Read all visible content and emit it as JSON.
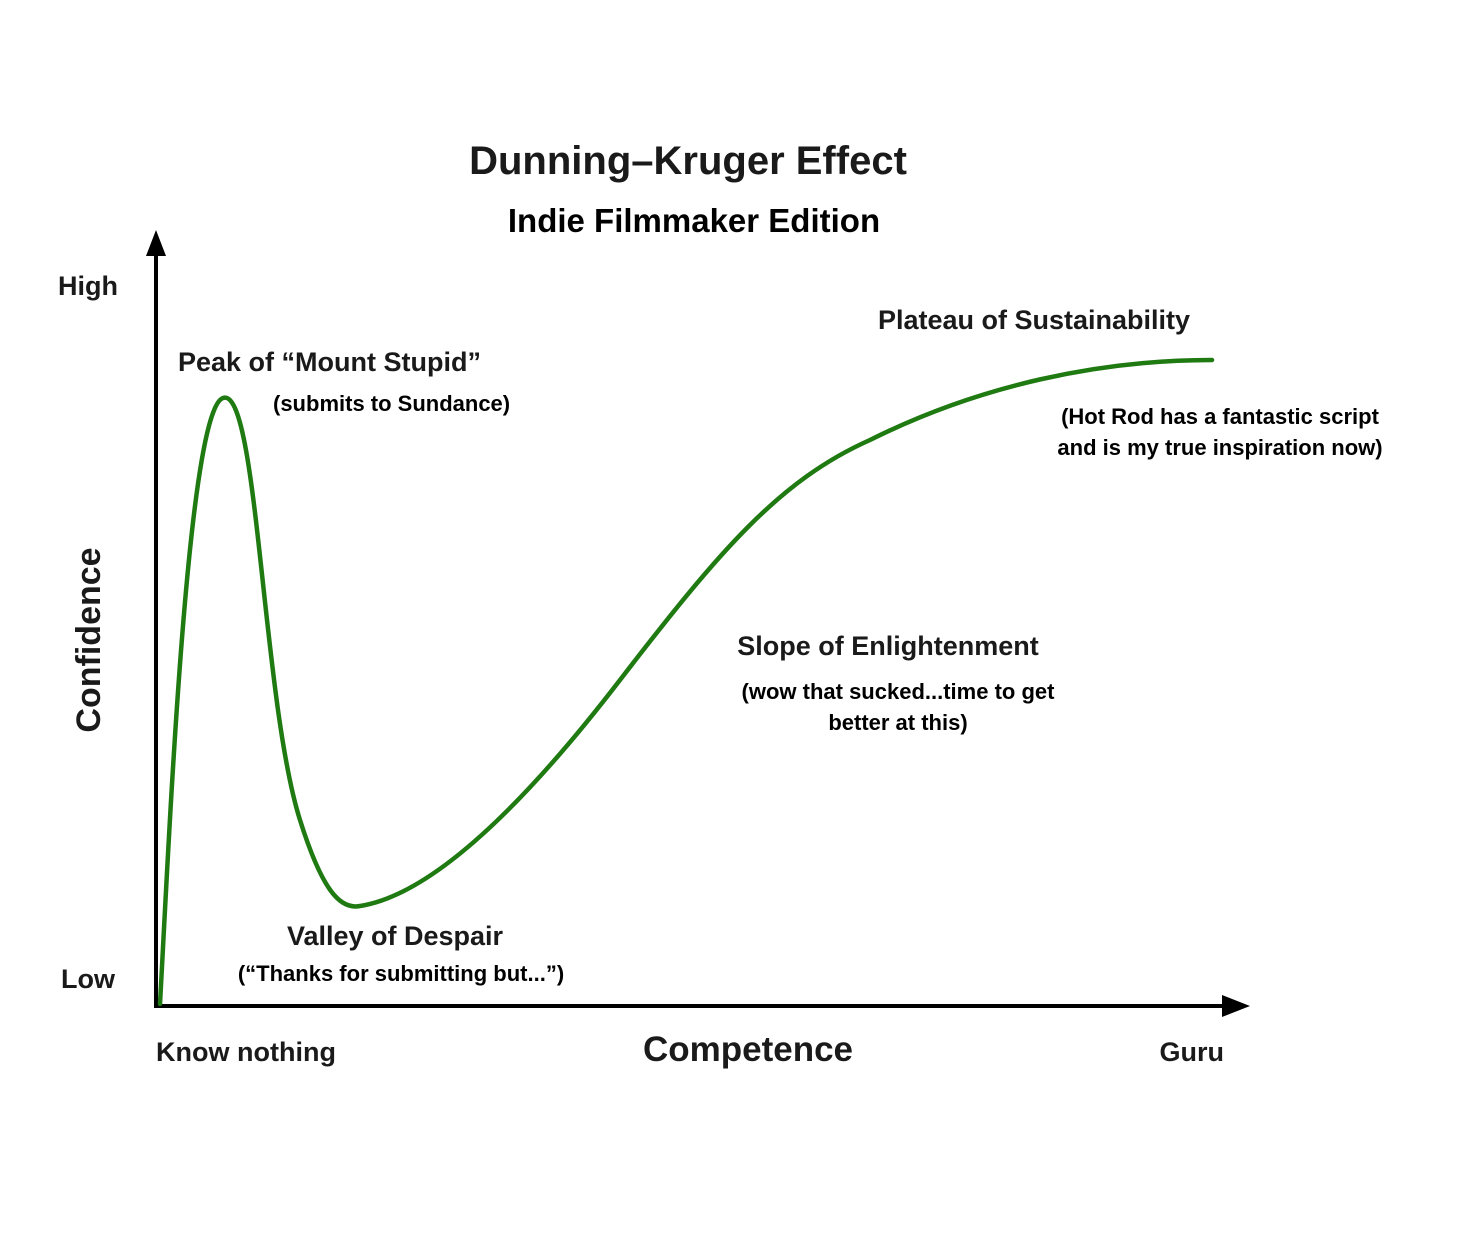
{
  "title": "Dunning–Kruger Effect",
  "subtitle": "Indie Filmmaker Edition",
  "y_axis": {
    "label": "Confidence",
    "high": "High",
    "low": "Low"
  },
  "x_axis": {
    "label": "Competence",
    "start": "Know nothing",
    "end": "Guru"
  },
  "stages": {
    "peak": {
      "title": "Peak of “Mount Stupid”",
      "note": "(submits to Sundance)"
    },
    "valley": {
      "title": "Valley of Despair",
      "note": "(“Thanks for submitting but...”)"
    },
    "slope": {
      "title": "Slope of Enlightenment",
      "note_line1": "(wow that sucked...time to get",
      "note_line2": "better at this)"
    },
    "plateau": {
      "title": "Plateau of Sustainability",
      "note_line1": "(Hot Rod has a fantastic script",
      "note_line2": "and is my true inspiration now)"
    }
  },
  "colors": {
    "curve": "#1f7a12",
    "axis": "#000000",
    "text": "#1a1a1a"
  }
}
